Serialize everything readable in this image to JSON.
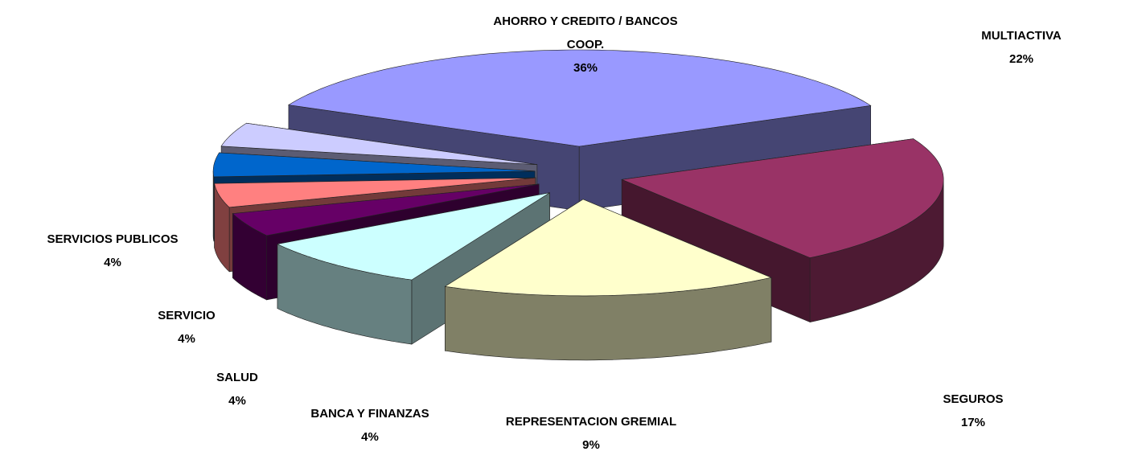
{
  "chart_data": {
    "type": "pie",
    "categories": [
      "MULTIACTIVA",
      "SEGUROS",
      "REPRESENTACION GREMIAL",
      "BANCA Y FINANZAS",
      "SALUD",
      "SERVICIO",
      "SERVICIOS PUBLICOS",
      "AHORRO Y CREDITO / BANCOS COOP."
    ],
    "values": [
      22,
      17,
      9,
      4,
      4,
      4,
      4,
      36
    ],
    "value_labels": [
      "22%",
      "17%",
      "9%",
      "4%",
      "4%",
      "4%",
      "4%",
      "36%"
    ],
    "colors": [
      "#993366",
      "#ffffcc",
      "#ccffff",
      "#660066",
      "#ff8080",
      "#0066cc",
      "#ccccff",
      "#9999ff"
    ]
  }
}
